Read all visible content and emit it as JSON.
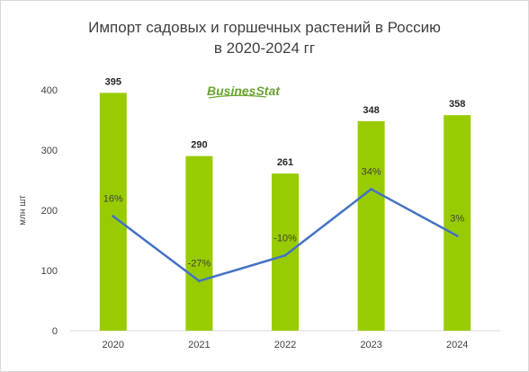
{
  "title_line1": "Импорт садовых и горшечных растений в Россию",
  "title_line2": "в 2020-2024 гг",
  "logo_text": "BusinesStat",
  "colors": {
    "bars": "#99cc00",
    "line": "#4472c4",
    "axis": "#d9d9d9"
  },
  "chart_data": {
    "type": "bar",
    "title": "Импорт садовых и горшечных растений в Россию в 2020-2024 гг",
    "categories": [
      "2020",
      "2021",
      "2022",
      "2023",
      "2024"
    ],
    "ylabel": "млн шт",
    "ylim": [
      0,
      400
    ],
    "yticks": [
      "0",
      "100",
      "200",
      "300",
      "400"
    ],
    "grid": false,
    "series": [
      {
        "kind": "bar",
        "values": [
          395,
          290,
          261,
          348,
          358
        ],
        "labels": [
          "395",
          "290",
          "261",
          "348",
          "358"
        ]
      },
      {
        "kind": "line",
        "values": [
          16,
          -27,
          -10,
          34,
          3
        ],
        "labels": [
          "16%",
          "-27%",
          "-10%",
          "34%",
          "3%"
        ]
      }
    ]
  }
}
